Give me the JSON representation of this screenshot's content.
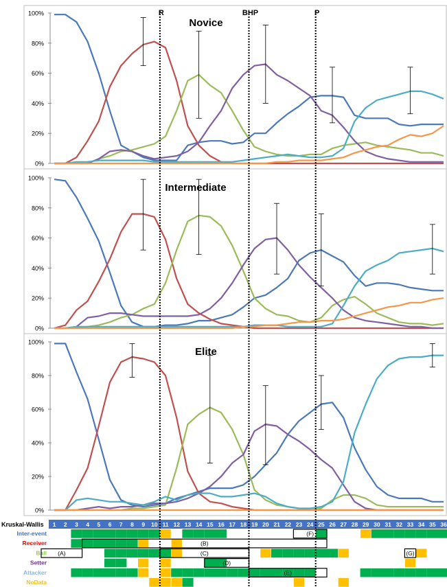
{
  "chart_data": {
    "type": "line",
    "x": [
      1,
      2,
      3,
      4,
      5,
      6,
      7,
      8,
      9,
      10,
      11,
      12,
      13,
      14,
      15,
      16,
      17,
      18,
      19,
      20,
      21,
      22,
      23,
      24,
      25,
      26,
      27,
      28,
      29,
      30,
      31,
      32,
      33,
      34,
      35,
      36
    ],
    "ylim": [
      0,
      100
    ],
    "y_ticks": [
      "0%",
      "20%",
      "40%",
      "60%",
      "80%",
      "100%"
    ],
    "phase_lines": [
      {
        "label": "R",
        "at": 10.5
      },
      {
        "label": "BHP",
        "at": 18.5
      },
      {
        "label": "P",
        "at": 24.5
      }
    ],
    "series_colors": {
      "inter_event": "#4a78b8",
      "receiver": "#c0504d",
      "ball": "#9bbb59",
      "setter": "#7f5fa1",
      "attacker": "#4bacc6",
      "nodata": "#f79646"
    },
    "panels": [
      {
        "title": "Novice",
        "series": {
          "inter_event": [
            99,
            99,
            94,
            81,
            60,
            35,
            12,
            8,
            4,
            2,
            2,
            2,
            12,
            14,
            15,
            15,
            13,
            14,
            20,
            20,
            27,
            33,
            38,
            44,
            45,
            45,
            44,
            32,
            30,
            30,
            30,
            26,
            25,
            26,
            26,
            26
          ],
          "receiver": [
            0,
            0,
            4,
            15,
            28,
            51,
            65,
            73,
            79,
            81,
            77,
            55,
            25,
            12,
            5,
            1,
            0,
            0,
            0,
            0,
            0,
            0,
            0,
            0,
            0,
            0,
            0,
            0,
            0,
            0,
            0,
            0,
            0,
            0,
            0,
            0
          ],
          "ball": [
            0,
            0,
            0,
            0,
            3,
            5,
            8,
            9,
            11,
            13,
            18,
            35,
            55,
            59,
            52,
            47,
            35,
            22,
            11,
            8,
            6,
            5,
            5,
            6,
            6,
            10,
            12,
            13,
            14,
            12,
            11,
            10,
            9,
            7,
            7,
            5
          ],
          "setter": [
            0,
            0,
            0,
            0,
            3,
            8,
            9,
            8,
            5,
            3,
            4,
            5,
            8,
            14,
            25,
            35,
            50,
            59,
            65,
            66,
            59,
            55,
            50,
            45,
            35,
            32,
            24,
            15,
            8,
            5,
            3,
            2,
            1,
            1,
            1,
            1
          ],
          "attacker": [
            0,
            0,
            1,
            1,
            2,
            2,
            2,
            2,
            2,
            1,
            1,
            1,
            1,
            1,
            1,
            1,
            1,
            2,
            3,
            4,
            5,
            6,
            5,
            4,
            4,
            5,
            10,
            28,
            37,
            42,
            44,
            46,
            48,
            48,
            46,
            43
          ],
          "nodata": [
            0,
            0,
            0,
            0,
            0,
            0,
            0,
            0,
            0,
            0,
            0,
            0,
            0,
            0,
            0,
            0,
            0,
            0,
            0,
            0,
            1,
            1,
            2,
            2,
            2,
            3,
            4,
            7,
            9,
            11,
            12,
            16,
            19,
            18,
            20,
            25
          ]
        },
        "error_bars": [
          {
            "series": "receiver",
            "x": 9,
            "low": 65,
            "high": 97
          },
          {
            "series": "ball",
            "x": 14,
            "low": 30,
            "high": 88
          },
          {
            "series": "setter",
            "x": 20,
            "low": 40,
            "high": 92
          },
          {
            "series": "inter_event",
            "x": 26,
            "low": 27,
            "high": 64
          },
          {
            "series": "attacker",
            "x": 33,
            "low": 33,
            "high": 64
          }
        ]
      },
      {
        "title": "Intermediate",
        "series": {
          "inter_event": [
            99,
            98,
            87,
            73,
            58,
            37,
            15,
            4,
            1,
            1,
            2,
            2,
            3,
            5,
            5,
            7,
            9,
            14,
            20,
            22,
            27,
            33,
            45,
            50,
            52,
            48,
            44,
            35,
            28,
            30,
            30,
            29,
            27,
            26,
            25,
            25
          ],
          "receiver": [
            0,
            2,
            12,
            18,
            31,
            46,
            64,
            76,
            76,
            74,
            59,
            33,
            16,
            10,
            6,
            3,
            2,
            1,
            0,
            0,
            0,
            0,
            0,
            0,
            0,
            0,
            0,
            0,
            0,
            0,
            0,
            0,
            0,
            0,
            0,
            0
          ],
          "ball": [
            0,
            0,
            0,
            1,
            2,
            4,
            7,
            9,
            13,
            16,
            30,
            52,
            71,
            75,
            74,
            68,
            55,
            38,
            20,
            13,
            9,
            8,
            5,
            4,
            7,
            15,
            19,
            21,
            16,
            10,
            7,
            4,
            3,
            3,
            2,
            3
          ],
          "setter": [
            0,
            0,
            1,
            7,
            8,
            10,
            10,
            9,
            8,
            8,
            8,
            8,
            8,
            9,
            13,
            20,
            30,
            42,
            53,
            59,
            60,
            52,
            42,
            34,
            27,
            20,
            12,
            7,
            5,
            4,
            3,
            2,
            1,
            1,
            0,
            0
          ],
          "attacker": [
            0,
            0,
            1,
            1,
            1,
            1,
            1,
            1,
            1,
            1,
            1,
            1,
            1,
            1,
            1,
            1,
            1,
            1,
            2,
            2,
            2,
            1,
            1,
            1,
            1,
            3,
            15,
            28,
            38,
            42,
            45,
            50,
            51,
            52,
            53,
            51
          ],
          "nodata": [
            0,
            0,
            0,
            0,
            0,
            0,
            0,
            0,
            0,
            0,
            0,
            0,
            0,
            0,
            0,
            0,
            0,
            1,
            1,
            2,
            2,
            3,
            4,
            4,
            5,
            5,
            6,
            8,
            10,
            12,
            14,
            15,
            17,
            17,
            19,
            20
          ]
        },
        "error_bars": [
          {
            "series": "receiver",
            "x": 9,
            "low": 52,
            "high": 99
          },
          {
            "series": "ball",
            "x": 14,
            "low": 49,
            "high": 99
          },
          {
            "series": "setter",
            "x": 21,
            "low": 36,
            "high": 83
          },
          {
            "series": "inter_event",
            "x": 25,
            "low": 28,
            "high": 76
          },
          {
            "series": "attacker",
            "x": 35,
            "low": 36,
            "high": 69
          }
        ]
      },
      {
        "title": "Elite",
        "series": {
          "inter_event": [
            99,
            99,
            82,
            66,
            42,
            18,
            6,
            3,
            2,
            3,
            4,
            7,
            9,
            11,
            13,
            13,
            13,
            15,
            20,
            27,
            34,
            45,
            53,
            58,
            63,
            64,
            55,
            37,
            24,
            14,
            9,
            7,
            7,
            7,
            5,
            5
          ],
          "receiver": [
            0,
            0,
            12,
            25,
            50,
            76,
            88,
            91,
            90,
            88,
            80,
            55,
            23,
            10,
            5,
            4,
            2,
            1,
            0,
            0,
            0,
            0,
            0,
            0,
            0,
            0,
            0,
            0,
            0,
            0,
            0,
            0,
            0,
            0,
            0,
            0
          ],
          "ball": [
            0,
            0,
            0,
            0,
            0,
            0,
            0,
            1,
            1,
            2,
            3,
            25,
            51,
            57,
            61,
            58,
            48,
            33,
            12,
            6,
            3,
            2,
            1,
            0,
            1,
            6,
            9,
            9,
            7,
            3,
            2,
            2,
            2,
            2,
            2,
            2
          ],
          "setter": [
            0,
            0,
            0,
            1,
            2,
            1,
            2,
            2,
            3,
            4,
            4,
            5,
            7,
            10,
            14,
            20,
            28,
            33,
            47,
            51,
            50,
            45,
            41,
            36,
            30,
            25,
            15,
            5,
            1,
            0,
            0,
            0,
            0,
            0,
            0,
            0
          ],
          "attacker": [
            0,
            0,
            6,
            7,
            6,
            5,
            5,
            4,
            3,
            5,
            8,
            6,
            9,
            10,
            10,
            8,
            8,
            9,
            10,
            8,
            4,
            2,
            1,
            1,
            2,
            5,
            17,
            46,
            63,
            78,
            86,
            90,
            91,
            91,
            92,
            92
          ],
          "nodata": [
            0,
            0,
            0,
            0,
            0,
            0,
            0,
            0,
            0,
            0,
            0,
            0,
            0,
            0,
            0,
            0,
            0,
            0,
            0,
            0,
            0,
            0,
            0,
            0,
            0,
            0,
            0,
            0,
            0,
            0,
            0,
            0,
            0,
            0,
            0,
            0
          ]
        },
        "error_bars": [
          {
            "series": "receiver",
            "x": 8,
            "low": 79,
            "high": 99
          },
          {
            "series": "ball",
            "x": 15,
            "low": 28,
            "high": 92
          },
          {
            "series": "setter",
            "x": 20,
            "low": 27,
            "high": 74
          },
          {
            "series": "inter_event",
            "x": 25,
            "low": 48,
            "high": 80
          },
          {
            "series": "attacker",
            "x": 35,
            "low": 85,
            "high": 99
          }
        ]
      }
    ],
    "kruskal_wallis": {
      "header_label": "Kruskal-Wallis",
      "columns": [
        "1",
        "2",
        "3",
        "4",
        "5",
        "6",
        "7",
        "8",
        "9",
        "10",
        "11",
        "12",
        "13",
        "14",
        "15",
        "16",
        "17",
        "18",
        "19",
        "20",
        "21",
        "22",
        "23",
        "24",
        "25",
        "26",
        "27",
        "28",
        "29",
        "30",
        "31",
        "32",
        "33",
        "34",
        "35",
        "36"
      ],
      "colors": {
        "green": "#00b050",
        "yellow": "#ffc000",
        "header_fill": "#4472c4"
      },
      "rows": [
        {
          "label": "Inter-event",
          "color": "#4472c4",
          "green": [
            3,
            4,
            5,
            6,
            7,
            8,
            9,
            10,
            13,
            14,
            15,
            16,
            25,
            30,
            31,
            32,
            33,
            34,
            35,
            36
          ],
          "yellow": [
            11,
            29
          ]
        },
        {
          "label": "Receiver",
          "color": "#ff0000",
          "green": [
            3,
            4,
            5,
            6,
            7,
            8
          ],
          "yellow": [
            9,
            12
          ]
        },
        {
          "label": "Ball",
          "color": "#92d050",
          "green": [
            6,
            7,
            8,
            9,
            10,
            11,
            21,
            22,
            23,
            24,
            25,
            26
          ],
          "yellow": [
            12,
            20,
            27,
            34
          ]
        },
        {
          "label": "Setter",
          "color": "#7030a0",
          "green": [
            6,
            7,
            15,
            16
          ],
          "yellow": [
            9,
            11,
            33
          ]
        },
        {
          "label": "Attacker",
          "color": "#8db4e2",
          "green": [
            3,
            4,
            5,
            6,
            7,
            8,
            12,
            13,
            14,
            15,
            16,
            17,
            18,
            19,
            20,
            21,
            22,
            23,
            24,
            29,
            30,
            31,
            32,
            33,
            34,
            35,
            36
          ],
          "yellow": [
            9,
            11
          ]
        },
        {
          "label": "NoData",
          "color": "#ffc000",
          "green": [
            13
          ],
          "yellow": [
            10,
            11,
            12,
            23,
            27
          ]
        }
      ],
      "boxes": [
        {
          "label": "(A)",
          "row": 2,
          "from": 1,
          "to": 3
        },
        {
          "label": "(B)",
          "row": 1,
          "from": 4,
          "to": 25
        },
        {
          "label": "(C)",
          "row": 2,
          "from": 11,
          "to": 18
        },
        {
          "label": "(D)",
          "row": 3,
          "from": 15,
          "to": 18
        },
        {
          "label": "(E)",
          "row": 4,
          "from": 19,
          "to": 25
        },
        {
          "label": "(F)",
          "row": 0,
          "from": 23,
          "to": 25
        },
        {
          "label": "(G)",
          "row": 2,
          "from": 33,
          "to": 33
        }
      ]
    }
  }
}
